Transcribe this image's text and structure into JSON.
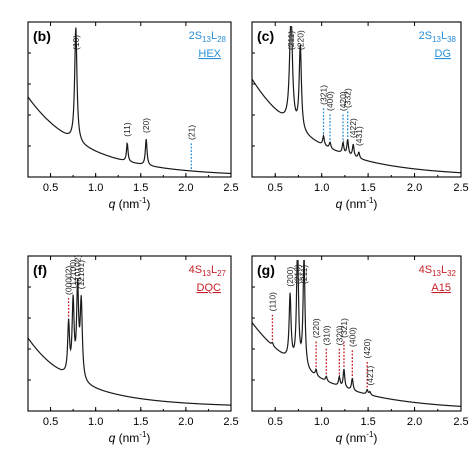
{
  "colors": {
    "blue": "#2a8fd8",
    "red": "#c8202a",
    "curve": "#1a1a1a"
  },
  "chart_data": [
    {
      "type": "line",
      "panel_label": "(b)",
      "sample": {
        "main": "2S",
        "sub1": "13",
        "mid": "L",
        "sub2": "28"
      },
      "phase": "HEX",
      "color": "blue",
      "xlabel_q": "q",
      "xlabel_unit": " (nm",
      "xlabel_exp": "-1",
      "xlabel_close": ")",
      "xlim": [
        0.25,
        2.5
      ],
      "xticks": [
        "0.5",
        "1.0",
        "1.5",
        "2.0",
        "2.5"
      ],
      "baseline": {
        "a": 0.66,
        "b": 0.56,
        "c": 0.0
      },
      "peaks": [
        {
          "label": "(10)",
          "q": 0.78,
          "height": 0.74,
          "width": 0.015,
          "marker": false
        },
        {
          "label": "(11)",
          "q": 1.35,
          "height": 0.12,
          "width": 0.01,
          "marker": false
        },
        {
          "label": "(20)",
          "q": 1.56,
          "height": 0.17,
          "width": 0.011,
          "marker": false
        },
        {
          "label": "(21)",
          "q": 2.06,
          "height": 0.0,
          "width": 0.01,
          "marker": true
        }
      ]
    },
    {
      "type": "line",
      "panel_label": "(c)",
      "sample": {
        "main": "2S",
        "sub1": "13",
        "mid": "L",
        "sub2": "38"
      },
      "phase": "DG",
      "color": "blue",
      "xlabel_q": "q",
      "xlabel_unit": " (nm",
      "xlabel_exp": "-1",
      "xlabel_close": ")",
      "xlim": [
        0.25,
        2.5
      ],
      "xticks": [
        "0.5",
        "1.0",
        "1.5",
        "2.0",
        "2.5"
      ],
      "baseline": {
        "a": 0.85,
        "b": 0.6,
        "c": 0.0
      },
      "peaks": [
        {
          "label": "(211)",
          "q": 0.67,
          "height": 0.73,
          "width": 0.018,
          "marker": false
        },
        {
          "label": "(220)",
          "q": 0.77,
          "height": 0.55,
          "width": 0.014,
          "marker": false
        },
        {
          "label": "(321)",
          "q": 1.02,
          "height": 0.06,
          "width": 0.01,
          "marker": true
        },
        {
          "label": "(400)",
          "q": 1.09,
          "height": 0.04,
          "width": 0.01,
          "marker": true
        },
        {
          "label": "(420)",
          "q": 1.23,
          "height": 0.07,
          "width": 0.01,
          "marker": true
        },
        {
          "label": "(332)",
          "q": 1.28,
          "height": 0.1,
          "width": 0.01,
          "marker": true
        },
        {
          "label": "(422)",
          "q": 1.34,
          "height": 0.08,
          "width": 0.01,
          "marker": false
        },
        {
          "label": "(431)",
          "q": 1.4,
          "height": 0.04,
          "width": 0.01,
          "marker": false
        }
      ]
    },
    {
      "type": "line",
      "panel_label": "(f)",
      "sample": {
        "main": "4S",
        "sub1": "13",
        "mid": "L",
        "sub2": "27"
      },
      "phase": "DQC",
      "color": "red",
      "xlabel_q": "q",
      "xlabel_unit": " (nm",
      "xlabel_exp": "-1",
      "xlabel_close": ")",
      "xlim": [
        0.25,
        2.5
      ],
      "xticks": [
        "0.5",
        "1.0",
        "1.5",
        "2.0",
        "2.5"
      ],
      "baseline": {
        "a": 0.55,
        "b": 0.45,
        "c": 0.02
      },
      "peaks": [
        {
          "label": "(00002)",
          "q": 0.7,
          "height": 0.33,
          "width": 0.012,
          "marker": true
        },
        {
          "label": "(12100)",
          "q": 0.75,
          "height": 0.48,
          "width": 0.013,
          "marker": false
        },
        {
          "label": "(10102)",
          "q": 0.8,
          "height": 0.58,
          "width": 0.013,
          "marker": false
        },
        {
          "label": "(12101)",
          "q": 0.84,
          "height": 0.5,
          "width": 0.014,
          "marker": false
        }
      ]
    },
    {
      "type": "line",
      "panel_label": "(g)",
      "sample": {
        "main": "4S",
        "sub1": "13",
        "mid": "L",
        "sub2": "32"
      },
      "phase": "A15",
      "color": "red",
      "xlabel_q": "q",
      "xlabel_unit": " (nm",
      "xlabel_exp": "-1",
      "xlabel_close": ")",
      "xlim": [
        0.25,
        2.5
      ],
      "xticks": [
        "0.5",
        "1.0",
        "1.5",
        "2.0",
        "2.5"
      ],
      "baseline": {
        "a": 0.75,
        "b": 0.65,
        "c": 0.0
      },
      "peaks": [
        {
          "label": "(110)",
          "q": 0.47,
          "height": 0.02,
          "width": 0.01,
          "marker": true
        },
        {
          "label": "(200)",
          "q": 0.66,
          "height": 0.42,
          "width": 0.012,
          "marker": false
        },
        {
          "label": "(210)",
          "q": 0.74,
          "height": 0.78,
          "width": 0.012,
          "marker": false
        },
        {
          "label": "(211)",
          "q": 0.81,
          "height": 0.72,
          "width": 0.012,
          "marker": false
        },
        {
          "label": "(220)",
          "q": 0.94,
          "height": 0.04,
          "width": 0.01,
          "marker": true
        },
        {
          "label": "(310)",
          "q": 1.05,
          "height": 0.03,
          "width": 0.01,
          "marker": true
        },
        {
          "label": "(320)",
          "q": 1.19,
          "height": 0.06,
          "width": 0.01,
          "marker": true
        },
        {
          "label": "(321)",
          "q": 1.24,
          "height": 0.12,
          "width": 0.01,
          "marker": true
        },
        {
          "label": "(400)",
          "q": 1.33,
          "height": 0.08,
          "width": 0.01,
          "marker": true
        },
        {
          "label": "(420)",
          "q": 1.49,
          "height": 0.03,
          "width": 0.01,
          "marker": true
        },
        {
          "label": "(421)",
          "q": 1.52,
          "height": 0.02,
          "width": 0.01,
          "marker": false
        }
      ]
    }
  ]
}
